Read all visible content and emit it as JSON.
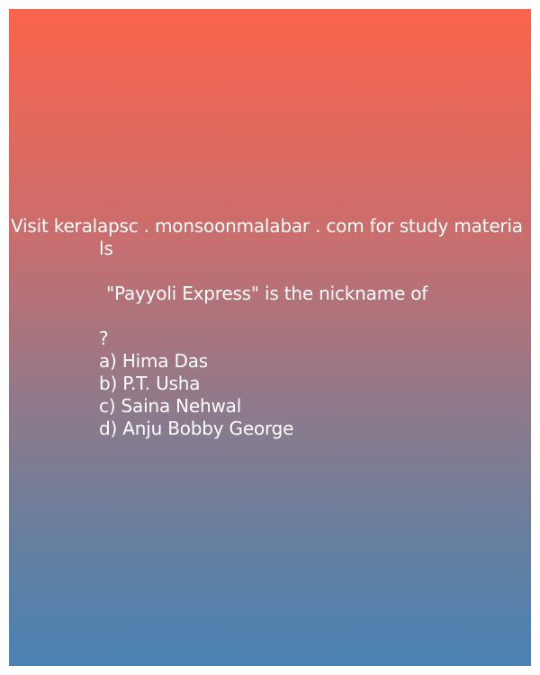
{
  "promo": {
    "line1": "Visit keralapsc . monsoonmalabar . com for study materia",
    "line2": "ls"
  },
  "question": {
    "text": "\"Payyoli Express\" is the nickname of",
    "mark": "?"
  },
  "options": [
    "a) Hima Das",
    "b) P.T. Usha",
    "c) Saina Nehwal",
    "d) Anju Bobby George"
  ],
  "colors": {
    "gradient_top": "#fb634b",
    "gradient_bottom": "#4a82b4",
    "text": "#ffffff"
  }
}
